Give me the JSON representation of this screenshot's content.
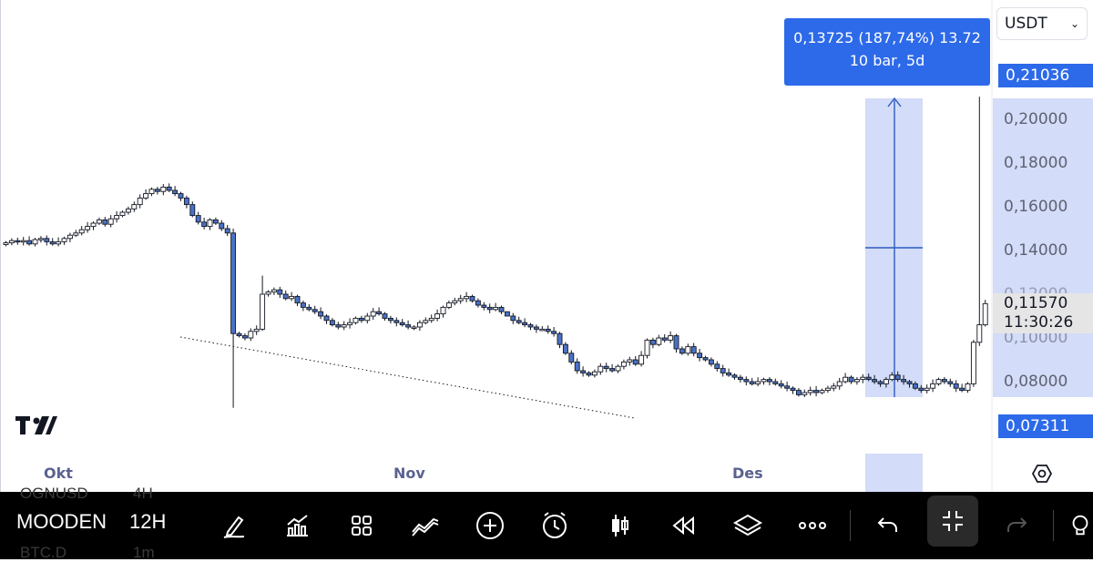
{
  "chart_data": {
    "type": "candlestick",
    "x_labels": [
      "Okt",
      "Nov",
      "Des"
    ],
    "y_ticks": [
      "0,20000",
      "0,18000",
      "0,16000",
      "0,14000",
      "0,12000",
      "0,10000",
      "0,08000"
    ],
    "ylim": [
      0.066,
      0.22
    ],
    "current_price": "0,11570",
    "countdown": "11:30:26",
    "measure_high_label": "0,21036",
    "measure_low_label": "0,07311",
    "measure": {
      "line1": "0,13725 (187,74%) 13.72",
      "line2": "10 bar, 5d"
    },
    "ohlc_close_path": [
      0.1435,
      0.1445,
      0.144,
      0.1445,
      0.143,
      0.145,
      0.1455,
      0.144,
      0.143,
      0.144,
      0.1455,
      0.147,
      0.148,
      0.1495,
      0.151,
      0.1525,
      0.154,
      0.152,
      0.1545,
      0.156,
      0.1575,
      0.159,
      0.161,
      0.164,
      0.166,
      0.168,
      0.167,
      0.169,
      0.1675,
      0.166,
      0.164,
      0.161,
      0.156,
      0.153,
      0.151,
      0.154,
      0.1525,
      0.15,
      0.148,
      0.102,
      0.101,
      0.1,
      0.103,
      0.104,
      0.12,
      0.121,
      0.122,
      0.12,
      0.118,
      0.119,
      0.116,
      0.114,
      0.113,
      0.112,
      0.11,
      0.108,
      0.106,
      0.105,
      0.106,
      0.107,
      0.109,
      0.108,
      0.11,
      0.112,
      0.111,
      0.109,
      0.108,
      0.107,
      0.106,
      0.105,
      0.105,
      0.107,
      0.108,
      0.109,
      0.111,
      0.114,
      0.116,
      0.117,
      0.118,
      0.119,
      0.117,
      0.115,
      0.114,
      0.113,
      0.114,
      0.112,
      0.11,
      0.108,
      0.107,
      0.106,
      0.105,
      0.104,
      0.104,
      0.103,
      0.102,
      0.097,
      0.093,
      0.089,
      0.085,
      0.084,
      0.083,
      0.0845,
      0.087,
      0.086,
      0.085,
      0.087,
      0.089,
      0.09,
      0.088,
      0.092,
      0.099,
      0.097,
      0.1,
      0.099,
      0.101,
      0.095,
      0.093,
      0.096,
      0.093,
      0.091,
      0.09,
      0.088,
      0.086,
      0.084,
      0.083,
      0.082,
      0.081,
      0.08,
      0.079,
      0.08,
      0.081,
      0.08,
      0.079,
      0.078,
      0.077,
      0.076,
      0.074,
      0.075,
      0.076,
      0.075,
      0.076,
      0.077,
      0.078,
      0.08,
      0.082,
      0.08,
      0.081,
      0.082,
      0.081,
      0.08,
      0.079,
      0.081,
      0.083,
      0.081,
      0.08,
      0.079,
      0.077,
      0.076,
      0.077,
      0.079,
      0.081,
      0.08,
      0.079,
      0.077,
      0.076,
      0.079,
      0.098,
      0.106,
      0.1157
    ],
    "spike_high": 0.21036,
    "grid": false,
    "legend": "none"
  },
  "toolbar": {
    "symbol": "MOODEN",
    "interval": "12H",
    "ghost_top_left": "OGNUSD",
    "ghost_top_mid": "4H",
    "ghost_bottom_left": "BTC.D",
    "ghost_bottom_mid": "1m"
  },
  "currency": {
    "label": "USDT"
  },
  "colors": {
    "up": "#ffffff",
    "down": "#4a72c6",
    "outline": "#131722",
    "accent": "#2d6ae9",
    "measure_fill": "#d3dcf8"
  }
}
